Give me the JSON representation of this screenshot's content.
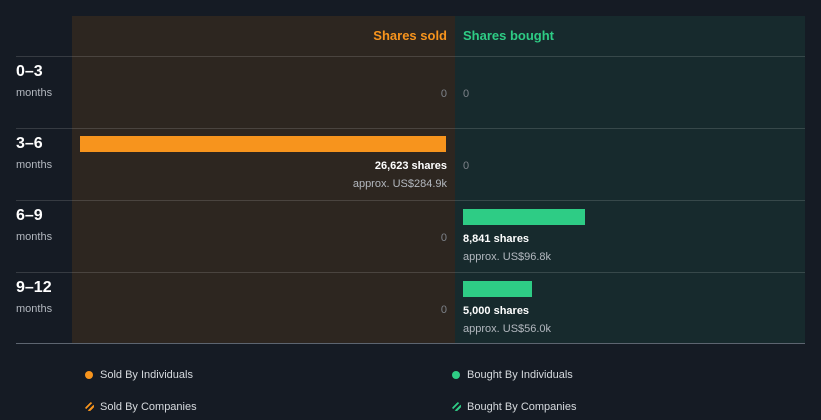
{
  "chart_data": {
    "type": "bar",
    "columns": [
      "Shares sold",
      "Shares bought"
    ],
    "categories": [
      {
        "period": "0–3",
        "unit": "months"
      },
      {
        "period": "3–6",
        "unit": "months"
      },
      {
        "period": "6–9",
        "unit": "months"
      },
      {
        "period": "9–12",
        "unit": "months"
      }
    ],
    "series": [
      {
        "name": "Shares sold",
        "values": [
          0,
          26623,
          0,
          0
        ],
        "labels": [
          "0",
          "26,623 shares",
          "0",
          "0"
        ],
        "approx": [
          "",
          "approx. US$284.9k",
          "",
          ""
        ]
      },
      {
        "name": "Shares bought",
        "values": [
          0,
          0,
          8841,
          5000
        ],
        "labels": [
          "0",
          "0",
          "8,841 shares",
          "5,000 shares"
        ],
        "approx": [
          "",
          "",
          "approx. US$96.8k",
          "approx. US$56.0k"
        ]
      }
    ],
    "legend": [
      {
        "label": "Sold By Individuals",
        "style": "dot",
        "color": "#f7941d"
      },
      {
        "label": "Bought By Individuals",
        "style": "dot",
        "color": "#2ecc85"
      },
      {
        "label": "Sold By Companies",
        "style": "hatch",
        "color": "#f7941d"
      },
      {
        "label": "Bought By Companies",
        "style": "hatch",
        "color": "#2ecc85"
      }
    ],
    "colors": {
      "sold": "#f7941d",
      "bought": "#2ecc85"
    }
  }
}
